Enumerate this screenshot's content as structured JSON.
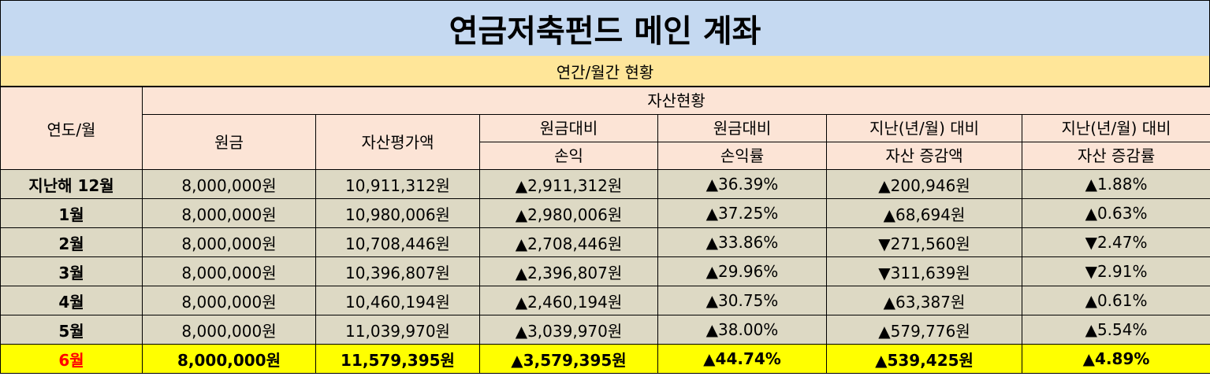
{
  "title": "연금저축펀드 메인 계좌",
  "subtitle": "연간/월간 현황",
  "header": {
    "year_month": "연도/월",
    "asset_status": "자산현황",
    "principal": "원금",
    "valuation": "자산평가액",
    "pl_line1": "원금대비",
    "pl_line2": "손익",
    "plr_line1": "원금대비",
    "plr_line2": "손익률",
    "chg_line1": "지난(년/월) 대비",
    "chg_line2": "자산 증감액",
    "chgr_line1": "지난(년/월) 대비",
    "chgr_line2": "자산 증감률"
  },
  "rows": [
    {
      "month": "지난해 12월",
      "principal": "8,000,000원",
      "valuation": "10,911,312원",
      "pl": "▲2,911,312원",
      "plr": "▲36.39%",
      "chg": "▲200,946원",
      "chgr": "▲1.88%",
      "chg_dir": "up"
    },
    {
      "month": "1월",
      "principal": "8,000,000원",
      "valuation": "10,980,006원",
      "pl": "▲2,980,006원",
      "plr": "▲37.25%",
      "chg": "▲68,694원",
      "chgr": "▲0.63%",
      "chg_dir": "up"
    },
    {
      "month": "2월",
      "principal": "8,000,000원",
      "valuation": "10,708,446원",
      "pl": "▲2,708,446원",
      "plr": "▲33.86%",
      "chg": "▼271,560원",
      "chgr": "▼2.47%",
      "chg_dir": "down"
    },
    {
      "month": "3월",
      "principal": "8,000,000원",
      "valuation": "10,396,807원",
      "pl": "▲2,396,807원",
      "plr": "▲29.96%",
      "chg": "▼311,639원",
      "chgr": "▼2.91%",
      "chg_dir": "down"
    },
    {
      "month": "4월",
      "principal": "8,000,000원",
      "valuation": "10,460,194원",
      "pl": "▲2,460,194원",
      "plr": "▲30.75%",
      "chg": "▲63,387원",
      "chgr": "▲0.61%",
      "chg_dir": "up"
    },
    {
      "month": "5월",
      "principal": "8,000,000원",
      "valuation": "11,039,970원",
      "pl": "▲3,039,970원",
      "plr": "▲38.00%",
      "chg": "▲579,776원",
      "chgr": "▲5.54%",
      "chg_dir": "up"
    },
    {
      "month": "6월",
      "principal": "8,000,000원",
      "valuation": "11,579,395원",
      "pl": "▲3,579,395원",
      "plr": "▲44.74%",
      "chg": "▲539,425원",
      "chgr": "▲4.89%",
      "chg_dir": "up",
      "highlight": true
    }
  ],
  "colors": {
    "title_bg": "#c5d9f1",
    "subtitle_bg": "#ffe699",
    "header_bg": "#fce4d6",
    "row_bg": "#ddd9c4",
    "highlight_bg": "#ffff00",
    "up": "#ff0000",
    "down": "#0000ff"
  }
}
